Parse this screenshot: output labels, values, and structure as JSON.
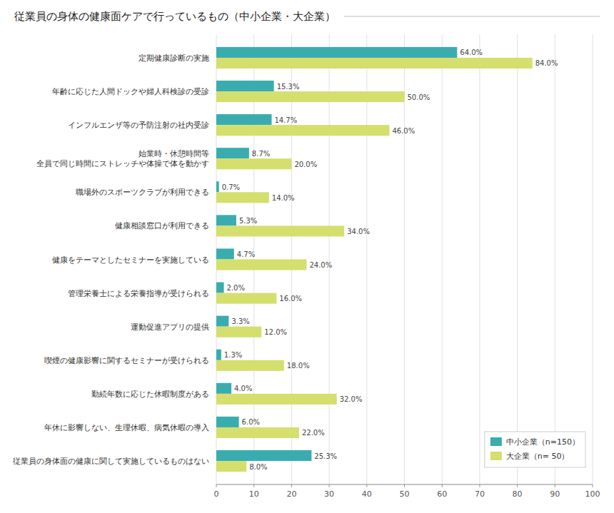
{
  "chart_data": {
    "type": "bar",
    "orientation": "horizontal",
    "title": "従業員の身体の健康面ケアで行っているもの（中小企業・大企業）",
    "categories": [
      "従業員の身体面の健康に関して実施しているものはない",
      "年休に影響しない、生理休暇、病気休暇の導入",
      "勤続年数に応じた休暇制度がある",
      "喫煙の健康影響に関するセミナーが受けられる",
      "運動促進アプリの提供",
      "管理栄養士による栄養指導が受けられる",
      "健康をテーマとしたセミナーを実施している",
      "健康相談窓口が利用できる",
      "職場外のスポーツクラブが利用できる",
      "始業時・休憩時間等\n全員で同じ時間にストレッチや体操で体を動かす",
      "インフルエンザ等の予防注射の社内受診",
      "年齢に応じた人間ドックや婦人科検診の受診",
      "定期健康診断の実施"
    ],
    "series": [
      {
        "name": "中小企業（n=150）",
        "color": "#3aacb0",
        "values": [
          25.3,
          6.0,
          4.0,
          1.3,
          3.3,
          2.0,
          4.7,
          5.3,
          0.7,
          8.7,
          14.7,
          15.3,
          64.0
        ],
        "value_labels": [
          "25.3%",
          "6.0%",
          "4.0%",
          "1.3%",
          "3.3%",
          "2.0%",
          "4.7%",
          "5.3%",
          "0.7%",
          "8.7%",
          "14.7%",
          "15.3%",
          "64.0%"
        ]
      },
      {
        "name": "大企業（n= 50）",
        "color": "#d4df6e",
        "values": [
          8.0,
          22.0,
          32.0,
          18.0,
          12.0,
          16.0,
          24.0,
          34.0,
          14.0,
          20.0,
          46.0,
          50.0,
          84.0
        ],
        "value_labels": [
          "8.0%",
          "22.0%",
          "32.0%",
          "18.0%",
          "12.0%",
          "16.0%",
          "24.0%",
          "34.0%",
          "14.0%",
          "20.0%",
          "46.0%",
          "50.0%",
          "84.0%"
        ]
      }
    ],
    "xlim": [
      0,
      100
    ],
    "xticks": [
      0,
      10,
      20,
      30,
      40,
      50,
      60,
      70,
      80,
      90,
      100
    ],
    "grid": true,
    "legend": "lower right",
    "data_labels": true
  }
}
